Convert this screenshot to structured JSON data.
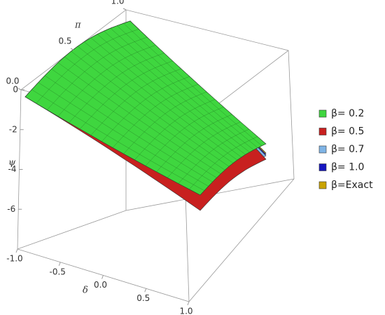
{
  "chart_data": {
    "type": "surface3d",
    "xlabel": "δ",
    "ylabel": "π",
    "zlabel": "ψ",
    "xlim": [
      -1,
      1
    ],
    "xticks": [
      {
        "value": -1,
        "label": "-1.0"
      },
      {
        "value": -0.5,
        "label": "-0.5"
      },
      {
        "value": 0,
        "label": "0.0"
      },
      {
        "value": 0.5,
        "label": "0.5"
      },
      {
        "value": 1,
        "label": "1.0"
      }
    ],
    "ylim": [
      0,
      1
    ],
    "yticks": [
      {
        "value": 0,
        "label": "0.0"
      },
      {
        "value": 0.5,
        "label": "0.5"
      },
      {
        "value": 1,
        "label": "1.0"
      }
    ],
    "zlim": [
      -8,
      0
    ],
    "zticks": [
      0,
      -2,
      -4,
      -6
    ],
    "legend": "right",
    "series": [
      {
        "name": "β= 0.2",
        "color": "#3fd63f"
      },
      {
        "name": "β= 0.5",
        "color": "#c8201f"
      },
      {
        "name": "β= 0.7",
        "color": "#7fb4e6"
      },
      {
        "name": "β= 1.0",
        "color": "#1616c0"
      },
      {
        "name": "β=Exact",
        "color": "#c9a300"
      }
    ]
  }
}
